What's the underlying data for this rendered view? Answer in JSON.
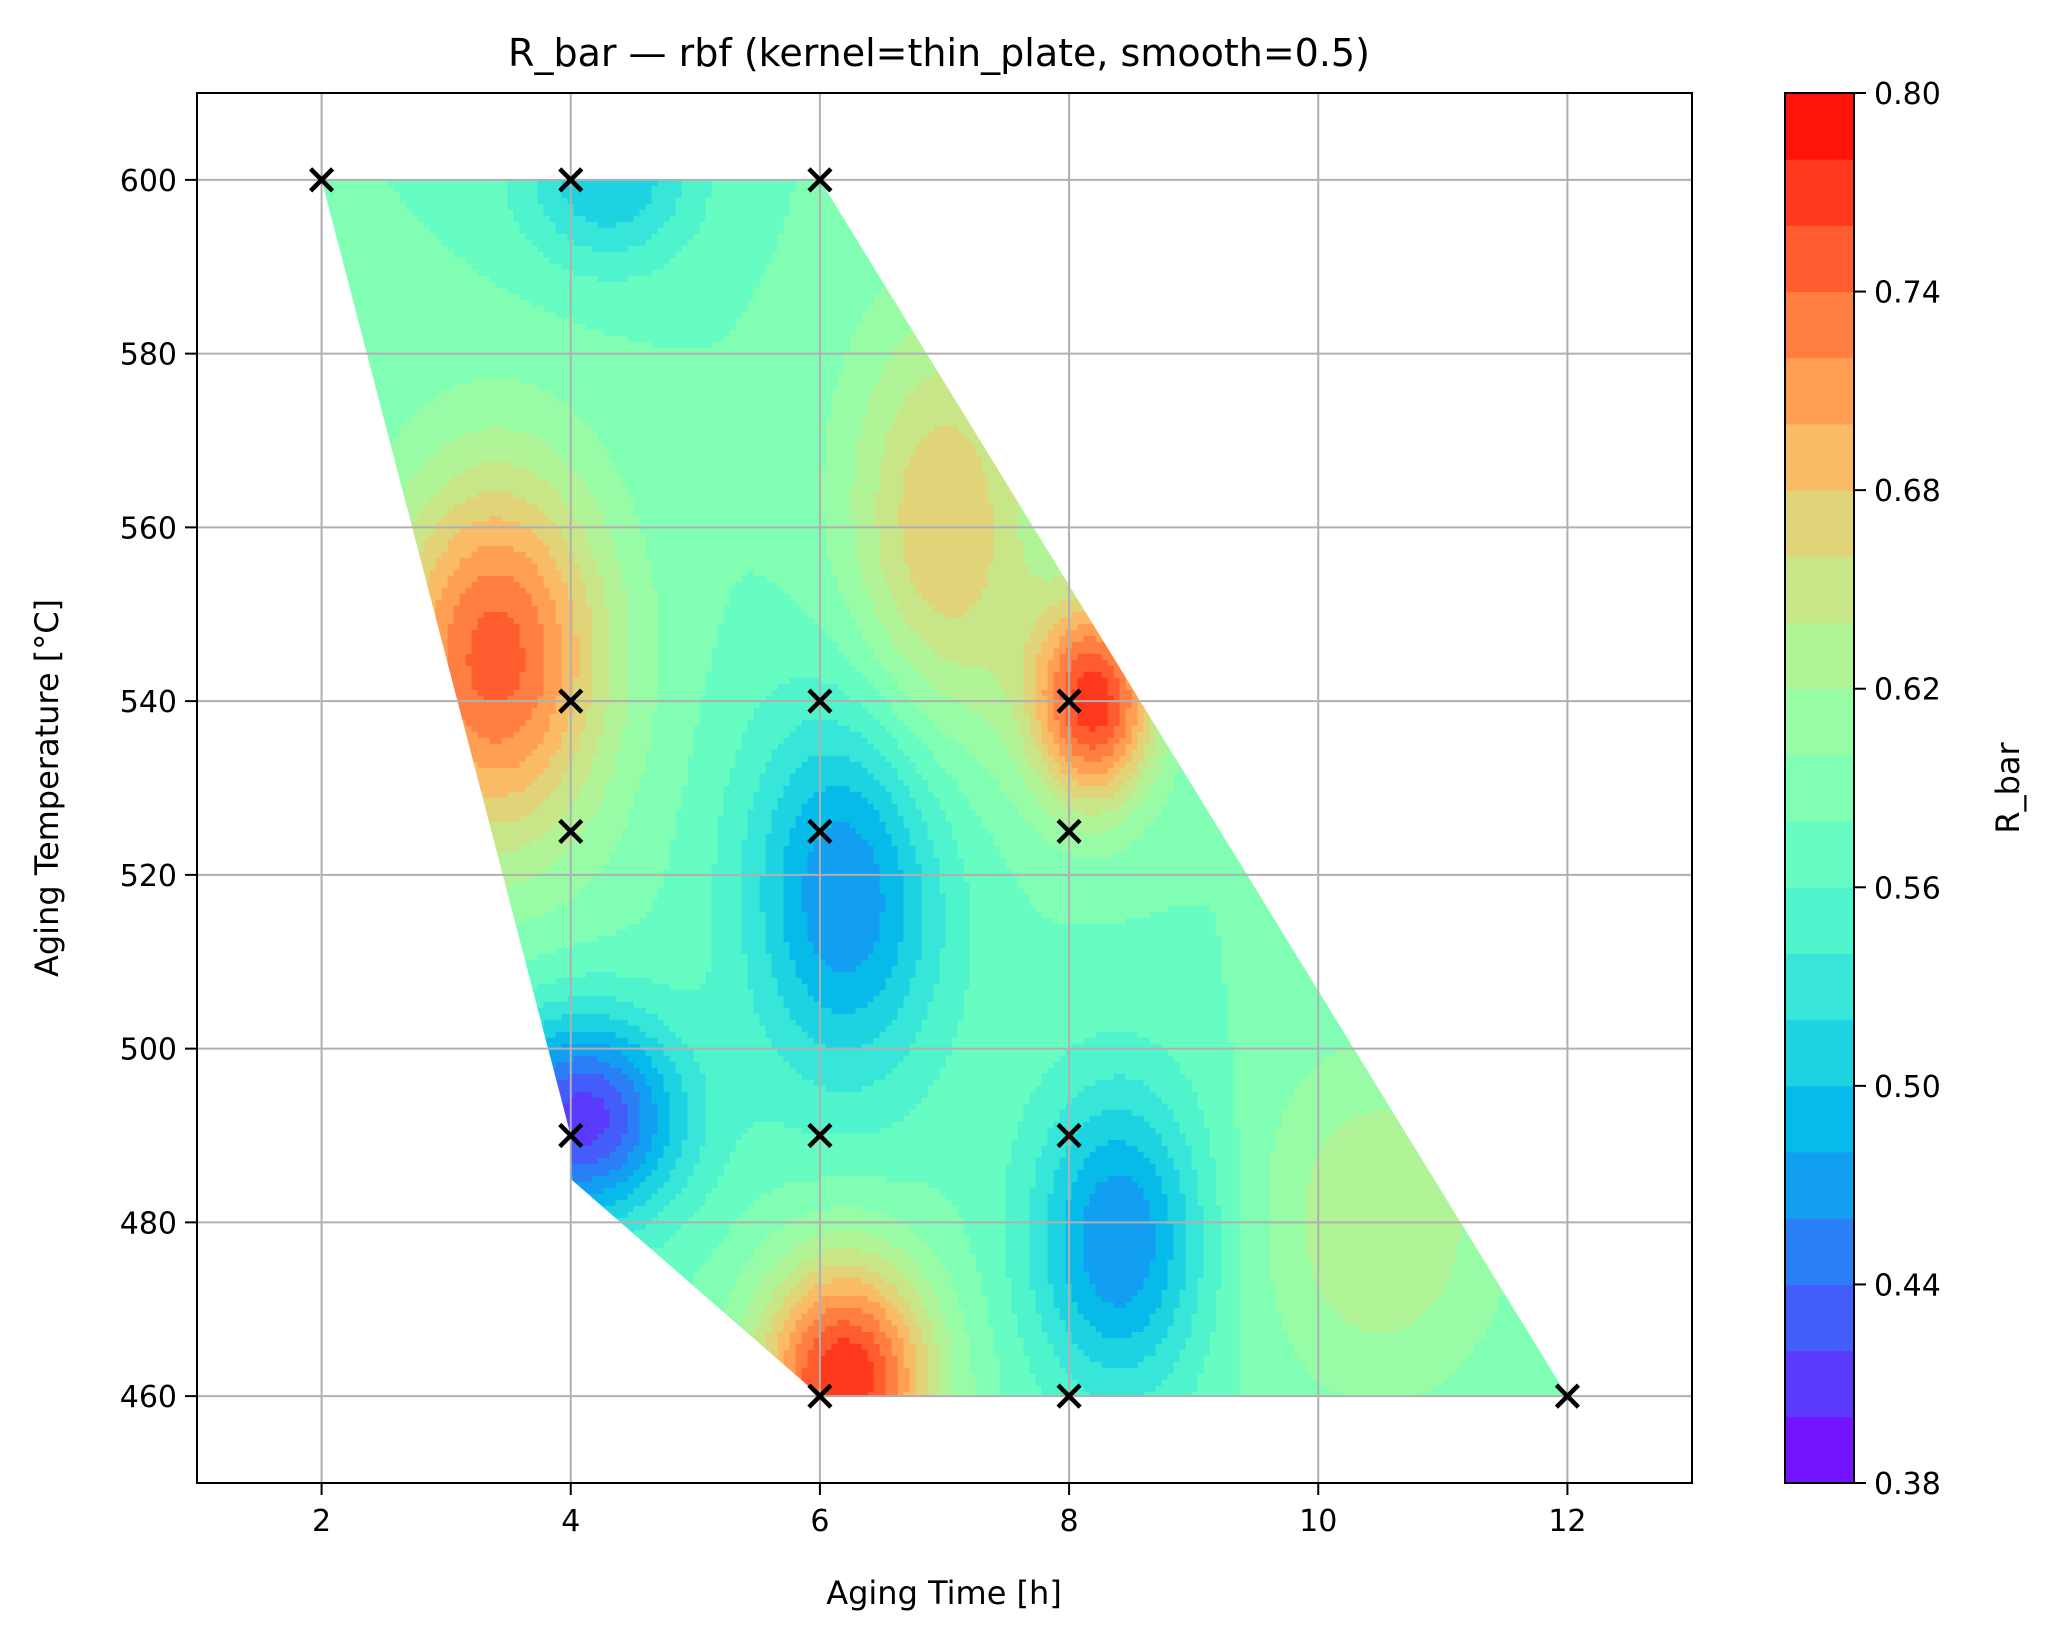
{
  "chart_data": {
    "type": "heatmap",
    "subtype": "filled-contour",
    "title": "R_bar — rbf (kernel=thin_plate, smooth=0.5)",
    "xlabel": "Aging Time [h]",
    "ylabel": "Aging Temperature [°C]",
    "xlim": [
      1,
      13
    ],
    "ylim": [
      450,
      610
    ],
    "xticks": [
      2,
      4,
      6,
      8,
      10,
      12
    ],
    "yticks": [
      460,
      480,
      500,
      520,
      540,
      560,
      580,
      600
    ],
    "grid": true,
    "colormap": "rainbow",
    "colorbar": {
      "label": "R_bar",
      "range": [
        0.38,
        0.8
      ],
      "levels": 21,
      "ticks": [
        "0.38",
        "0.44",
        "0.50",
        "0.56",
        "0.62",
        "0.68",
        "0.74",
        "0.80"
      ]
    },
    "domain_polygon": [
      {
        "x": 2,
        "y": 600
      },
      {
        "x": 6,
        "y": 600
      },
      {
        "x": 12,
        "y": 460
      },
      {
        "x": 6,
        "y": 460
      },
      {
        "x": 4,
        "y": 485
      },
      {
        "x": 4,
        "y": 490
      }
    ],
    "sample_points": [
      {
        "x": 2,
        "y": 600
      },
      {
        "x": 4,
        "y": 600
      },
      {
        "x": 6,
        "y": 600
      },
      {
        "x": 4,
        "y": 540
      },
      {
        "x": 6,
        "y": 540
      },
      {
        "x": 8,
        "y": 540
      },
      {
        "x": 4,
        "y": 525
      },
      {
        "x": 6,
        "y": 525
      },
      {
        "x": 8,
        "y": 525
      },
      {
        "x": 4,
        "y": 490
      },
      {
        "x": 6,
        "y": 490
      },
      {
        "x": 8,
        "y": 490
      },
      {
        "x": 6,
        "y": 460
      },
      {
        "x": 8,
        "y": 460
      },
      {
        "x": 12,
        "y": 460
      }
    ],
    "field_features": [
      {
        "x": 3.4,
        "y": 545,
        "value": 0.75,
        "spread_x": 0.9,
        "spread_y": 22
      },
      {
        "x": 6.2,
        "y": 462,
        "value": 0.78,
        "spread_x": 0.7,
        "spread_y": 14
      },
      {
        "x": 8.2,
        "y": 540,
        "value": 0.77,
        "spread_x": 0.5,
        "spread_y": 12
      },
      {
        "x": 4.1,
        "y": 492,
        "value": 0.41,
        "spread_x": 0.8,
        "spread_y": 12
      },
      {
        "x": 6.2,
        "y": 518,
        "value": 0.46,
        "spread_x": 0.8,
        "spread_y": 22
      },
      {
        "x": 8.4,
        "y": 478,
        "value": 0.46,
        "spread_x": 0.7,
        "spread_y": 18
      },
      {
        "x": 4.3,
        "y": 600,
        "value": 0.5,
        "spread_x": 0.7,
        "spread_y": 10
      },
      {
        "x": 7.0,
        "y": 560,
        "value": 0.68,
        "spread_x": 0.8,
        "spread_y": 25
      },
      {
        "x": 10.5,
        "y": 480,
        "value": 0.64,
        "spread_x": 1.0,
        "spread_y": 20
      }
    ],
    "field_base": 0.58
  }
}
